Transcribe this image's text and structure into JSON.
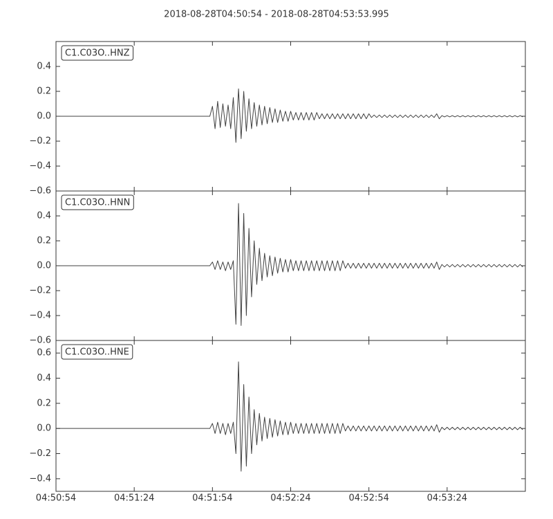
{
  "chart_data": [
    {
      "type": "line",
      "title": "2018-08-28T04:50:54  -  2018-08-28T04:53:53.995",
      "label": "C1.C03O..HNZ",
      "color": "#404040",
      "xlim": [
        0,
        180
      ],
      "ylim": [
        -0.6,
        0.6
      ],
      "yticks": [
        0.4,
        0.2,
        {
          "value": 0,
          "label": "0.0"
        },
        {
          "value": -0.2,
          "label": "−0.2"
        },
        {
          "value": -0.4,
          "label": "−0.4"
        },
        {
          "value": -0.6,
          "label": "−0.6"
        }
      ],
      "x": [
        0,
        59,
        60,
        61,
        62,
        63,
        64,
        65,
        66,
        67,
        68,
        69,
        70,
        71,
        72,
        73,
        74,
        75,
        76,
        77,
        78,
        79,
        80,
        81,
        82,
        83,
        84,
        85,
        86,
        87,
        88,
        89,
        90,
        91,
        92,
        93,
        94,
        95,
        96,
        97,
        98,
        99,
        100,
        101,
        102,
        103,
        104,
        105,
        106,
        107,
        108,
        109,
        110,
        111,
        112,
        113,
        114,
        115,
        116,
        117,
        118,
        119,
        120,
        121,
        122,
        123,
        124,
        125,
        126,
        127,
        128,
        129,
        130,
        131,
        132,
        133,
        134,
        135,
        136,
        137,
        138,
        139,
        140,
        141,
        142,
        143,
        144,
        145,
        146,
        147,
        148,
        149,
        150,
        151,
        152,
        153,
        154,
        155,
        156,
        157,
        158,
        159,
        160,
        161,
        162,
        163,
        164,
        165,
        166,
        167,
        168,
        169,
        170,
        171,
        172,
        173,
        174,
        175,
        176,
        177,
        178,
        179
      ],
      "values": [
        0,
        0,
        0.08,
        -0.1,
        0.12,
        -0.09,
        0.1,
        -0.08,
        0.09,
        -0.1,
        0.15,
        -0.21,
        0.22,
        -0.18,
        0.2,
        -0.12,
        0.14,
        -0.1,
        0.11,
        -0.08,
        0.09,
        -0.07,
        0.08,
        -0.06,
        0.07,
        -0.05,
        0.06,
        -0.05,
        0.05,
        -0.04,
        0.04,
        -0.04,
        0.04,
        -0.03,
        0.03,
        -0.03,
        0.03,
        -0.03,
        0.03,
        -0.03,
        0.03,
        -0.03,
        0.03,
        -0.02,
        0.02,
        -0.02,
        0.02,
        -0.02,
        0.02,
        -0.02,
        0.02,
        -0.02,
        0.02,
        -0.02,
        0.02,
        -0.02,
        0.02,
        -0.02,
        0.02,
        -0.02,
        0.02,
        -0.02,
        0.02,
        -0.01,
        0.01,
        -0.01,
        0.01,
        -0.01,
        0.01,
        -0.01,
        0.01,
        -0.01,
        0.01,
        -0.01,
        0.01,
        -0.01,
        0.01,
        -0.01,
        0.01,
        -0.01,
        0.01,
        -0.01,
        0.01,
        -0.01,
        0.01,
        -0.01,
        0.01,
        -0.01,
        0.02,
        -0.02,
        0.005,
        -0.005,
        0.005,
        -0.005,
        0.005,
        -0.005,
        0.005,
        -0.005,
        0.005,
        -0.005,
        0.005,
        -0.005,
        0.005,
        -0.005,
        0.005,
        -0.005,
        0.005,
        -0.005,
        0.005,
        -0.005,
        0.005,
        -0.005,
        0.005,
        -0.005,
        0.005,
        -0.005,
        0.005,
        -0.005,
        0.005,
        -0.005,
        0.005,
        -0.005
      ]
    },
    {
      "type": "line",
      "label": "C1.C03O..HNN",
      "color": "#404040",
      "xlim": [
        0,
        180
      ],
      "ylim": [
        -0.6,
        0.6
      ],
      "yticks": [
        0.4,
        0.2,
        {
          "value": 0,
          "label": "0.0"
        },
        {
          "value": -0.2,
          "label": "−0.2"
        },
        {
          "value": -0.4,
          "label": "−0.4"
        },
        {
          "value": -0.6,
          "label": "−0.6"
        }
      ],
      "x": [
        0,
        59,
        60,
        61,
        62,
        63,
        64,
        65,
        66,
        67,
        68,
        69,
        70,
        71,
        72,
        73,
        74,
        75,
        76,
        77,
        78,
        79,
        80,
        81,
        82,
        83,
        84,
        85,
        86,
        87,
        88,
        89,
        90,
        91,
        92,
        93,
        94,
        95,
        96,
        97,
        98,
        99,
        100,
        101,
        102,
        103,
        104,
        105,
        106,
        107,
        108,
        109,
        110,
        111,
        112,
        113,
        114,
        115,
        116,
        117,
        118,
        119,
        120,
        121,
        122,
        123,
        124,
        125,
        126,
        127,
        128,
        129,
        130,
        131,
        132,
        133,
        134,
        135,
        136,
        137,
        138,
        139,
        140,
        141,
        142,
        143,
        144,
        145,
        146,
        147,
        148,
        149,
        150,
        151,
        152,
        153,
        154,
        155,
        156,
        157,
        158,
        159,
        160,
        161,
        162,
        163,
        164,
        165,
        166,
        167,
        168,
        169,
        170,
        171,
        172,
        173,
        174,
        175,
        176,
        177,
        178,
        179
      ],
      "values": [
        0,
        0,
        0.03,
        -0.03,
        0.04,
        -0.03,
        0.03,
        -0.04,
        0.03,
        -0.03,
        0.04,
        -0.47,
        0.5,
        -0.48,
        0.42,
        -0.4,
        0.3,
        -0.25,
        0.2,
        -0.15,
        0.14,
        -0.12,
        0.1,
        -0.09,
        0.08,
        -0.08,
        0.07,
        -0.06,
        0.06,
        -0.05,
        0.05,
        -0.05,
        0.05,
        -0.04,
        0.04,
        -0.04,
        0.04,
        -0.04,
        0.04,
        -0.04,
        0.04,
        -0.04,
        0.04,
        -0.04,
        0.04,
        -0.04,
        0.04,
        -0.04,
        0.04,
        -0.04,
        0.04,
        -0.04,
        0.04,
        -0.02,
        0.02,
        -0.02,
        0.02,
        -0.02,
        0.02,
        -0.02,
        0.02,
        -0.02,
        0.02,
        -0.02,
        0.02,
        -0.02,
        0.02,
        -0.02,
        0.02,
        -0.02,
        0.02,
        -0.02,
        0.02,
        -0.02,
        0.02,
        -0.02,
        0.02,
        -0.02,
        0.02,
        -0.02,
        0.02,
        -0.02,
        0.02,
        -0.02,
        0.02,
        -0.02,
        0.02,
        -0.02,
        0.03,
        -0.03,
        0.01,
        -0.01,
        0.01,
        -0.01,
        0.01,
        -0.01,
        0.01,
        -0.01,
        0.01,
        -0.01,
        0.01,
        -0.01,
        0.01,
        -0.01,
        0.01,
        -0.01,
        0.01,
        -0.01,
        0.01,
        -0.01,
        0.01,
        -0.01,
        0.01,
        -0.01,
        0.01,
        -0.01,
        0.01,
        -0.01,
        0.01,
        -0.01,
        0.01,
        -0.01
      ]
    },
    {
      "type": "line",
      "label": "C1.C03O..HNE",
      "color": "#404040",
      "xlim": [
        0,
        180
      ],
      "ylim": [
        -0.5,
        0.7
      ],
      "yticks": [
        0.6,
        0.4,
        0.2,
        {
          "value": 0,
          "label": "0.0"
        },
        {
          "value": -0.2,
          "label": "−0.2"
        },
        {
          "value": -0.4,
          "label": "−0.4"
        }
      ],
      "xticks": [
        {
          "value": 0,
          "label": "04:50:54"
        },
        {
          "value": 30,
          "label": "04:51:24"
        },
        {
          "value": 60,
          "label": "04:51:54"
        },
        {
          "value": 90,
          "label": "04:52:24"
        },
        {
          "value": 120,
          "label": "04:52:54"
        },
        {
          "value": 150,
          "label": "04:53:24"
        }
      ],
      "x": [
        0,
        59,
        60,
        61,
        62,
        63,
        64,
        65,
        66,
        67,
        68,
        69,
        70,
        71,
        72,
        73,
        74,
        75,
        76,
        77,
        78,
        79,
        80,
        81,
        82,
        83,
        84,
        85,
        86,
        87,
        88,
        89,
        90,
        91,
        92,
        93,
        94,
        95,
        96,
        97,
        98,
        99,
        100,
        101,
        102,
        103,
        104,
        105,
        106,
        107,
        108,
        109,
        110,
        111,
        112,
        113,
        114,
        115,
        116,
        117,
        118,
        119,
        120,
        121,
        122,
        123,
        124,
        125,
        126,
        127,
        128,
        129,
        130,
        131,
        132,
        133,
        134,
        135,
        136,
        137,
        138,
        139,
        140,
        141,
        142,
        143,
        144,
        145,
        146,
        147,
        148,
        149,
        150,
        151,
        152,
        153,
        154,
        155,
        156,
        157,
        158,
        159,
        160,
        161,
        162,
        163,
        164,
        165,
        166,
        167,
        168,
        169,
        170,
        171,
        172,
        173,
        174,
        175,
        176,
        177,
        178,
        179
      ],
      "values": [
        0,
        0,
        0.04,
        -0.04,
        0.05,
        -0.04,
        0.04,
        -0.05,
        0.04,
        -0.04,
        0.05,
        -0.2,
        0.53,
        -0.34,
        0.35,
        -0.3,
        0.25,
        -0.2,
        0.15,
        -0.13,
        0.12,
        -0.1,
        0.09,
        -0.08,
        0.08,
        -0.07,
        0.07,
        -0.06,
        0.06,
        -0.05,
        0.05,
        -0.05,
        0.05,
        -0.04,
        0.04,
        -0.04,
        0.04,
        -0.04,
        0.04,
        -0.04,
        0.04,
        -0.04,
        0.04,
        -0.04,
        0.04,
        -0.04,
        0.04,
        -0.04,
        0.04,
        -0.04,
        0.04,
        -0.04,
        0.04,
        -0.02,
        0.02,
        -0.02,
        0.02,
        -0.02,
        0.02,
        -0.02,
        0.02,
        -0.02,
        0.02,
        -0.02,
        0.02,
        -0.02,
        0.02,
        -0.02,
        0.02,
        -0.02,
        0.02,
        -0.02,
        0.02,
        -0.02,
        0.02,
        -0.02,
        0.02,
        -0.02,
        0.02,
        -0.02,
        0.02,
        -0.02,
        0.02,
        -0.02,
        0.02,
        -0.02,
        0.02,
        -0.02,
        0.03,
        -0.03,
        0.01,
        -0.01,
        0.01,
        -0.01,
        0.01,
        -0.01,
        0.01,
        -0.01,
        0.01,
        -0.01,
        0.01,
        -0.01,
        0.01,
        -0.01,
        0.01,
        -0.01,
        0.01,
        -0.01,
        0.01,
        -0.01,
        0.01,
        -0.01,
        0.01,
        -0.01,
        0.01,
        -0.01,
        0.01,
        -0.01,
        0.01,
        -0.01,
        0.01,
        -0.01
      ]
    }
  ]
}
